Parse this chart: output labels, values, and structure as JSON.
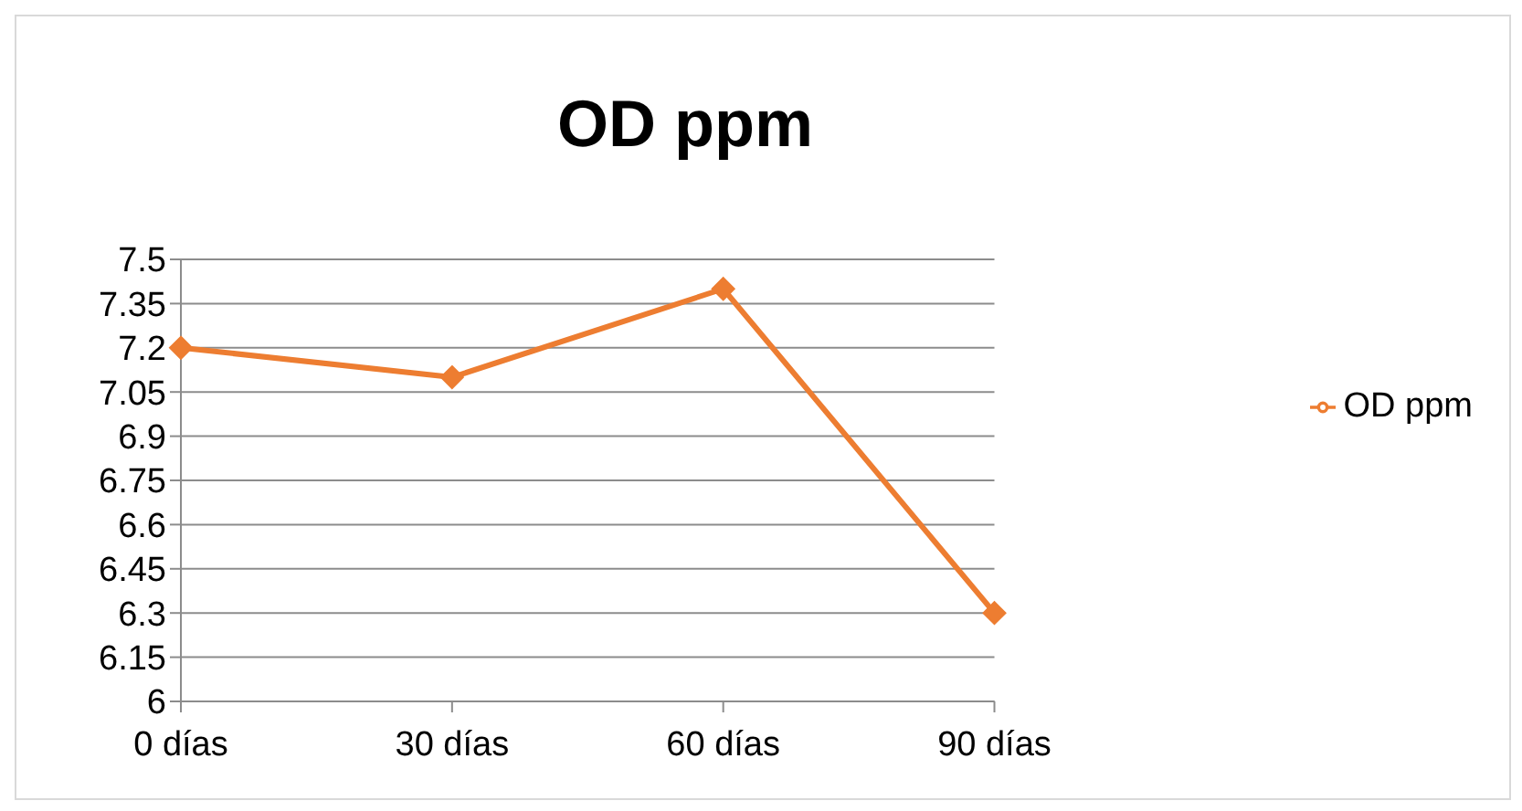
{
  "chart_data": {
    "type": "line",
    "title": "OD ppm",
    "categories": [
      "0 días",
      "30 días",
      "60 días",
      "90 días"
    ],
    "series": [
      {
        "name": "OD ppm",
        "color": "#ed7d31",
        "values": [
          7.2,
          7.1,
          7.4,
          6.3
        ]
      }
    ],
    "ylim": [
      6,
      7.5
    ],
    "yticks": [
      6,
      6.15,
      6.3,
      6.45,
      6.6,
      6.75,
      6.9,
      7.05,
      7.2,
      7.35,
      7.5
    ],
    "grid": "y",
    "legend": "right",
    "marker": "diamond",
    "line_style": "solid"
  }
}
